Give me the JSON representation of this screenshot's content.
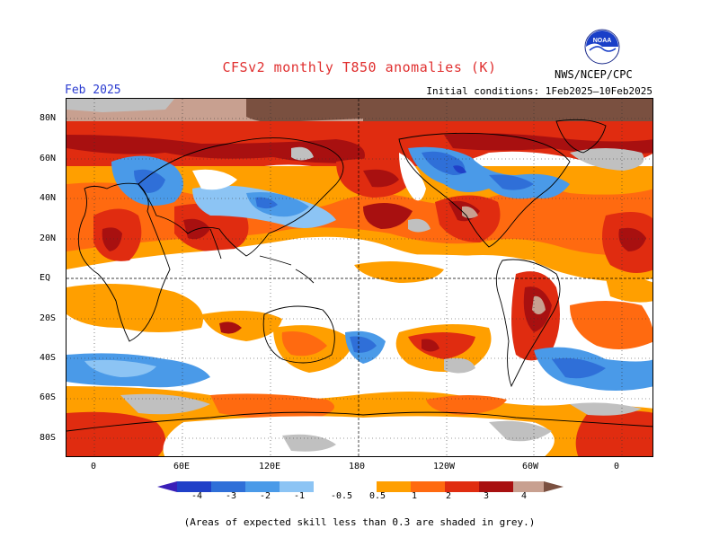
{
  "header": {
    "title": "CFSv2 monthly T850 anomalies (K)",
    "month": "Feb 2025",
    "initial_conditions": "Initial conditions: 1Feb2025–10Feb2025",
    "agency": "NWS/NCEP/CPC",
    "logo_text": "NOAA"
  },
  "map": {
    "lat_labels": [
      "80N",
      "60N",
      "40N",
      "20N",
      "EQ",
      "20S",
      "40S",
      "60S",
      "80S"
    ],
    "lon_labels": [
      "0",
      "60E",
      "120E",
      "180",
      "120W",
      "60W",
      "0"
    ],
    "projection": "global lat-lon, 20W–340E",
    "grid": "dotted 20° graticule, dashed equator and 180 meridian"
  },
  "colorbar": {
    "labels": [
      "-4",
      "-3",
      "-2",
      "-1",
      "-0.5",
      "0.5",
      "1",
      "2",
      "3",
      "4"
    ],
    "colors": [
      "#3a1fb8",
      "#2040c8",
      "#2f6fd8",
      "#4a9ae8",
      "#8cc4f4",
      "#ffffff",
      "#ff9f00",
      "#ff6a10",
      "#e02c10",
      "#a81010",
      "#c8a090",
      "#7a5040"
    ]
  },
  "footnote": "(Areas of expected skill less than 0.3 are shaded in grey.)",
  "colors": {
    "title": "#e03030",
    "month": "#2a3bd0",
    "skill_grey": "#c0c0c0"
  }
}
